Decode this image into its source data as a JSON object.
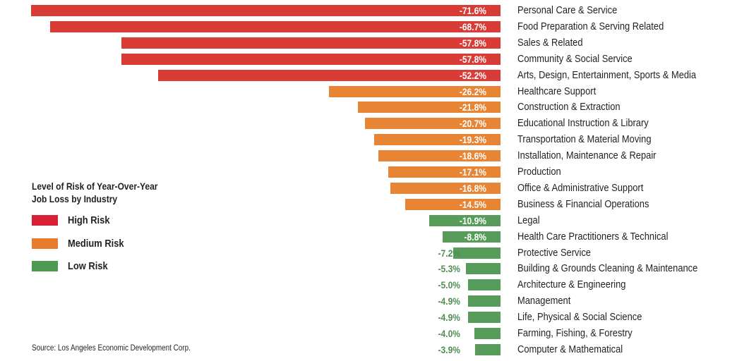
{
  "chart_data": {
    "type": "bar",
    "orientation": "horizontal",
    "title": "Level of Risk of Year-Over-Year Job Loss by Industry",
    "xlabel": "",
    "ylabel": "",
    "xlim": [
      -71.6,
      0
    ],
    "grid": false,
    "legend_placement": "left",
    "categories": [
      "Personal Care & Service",
      "Food Preparation & Serving Related",
      "Sales & Related",
      "Community & Social Service",
      "Arts, Design, Entertainment, Sports & Media",
      "Healthcare Support",
      "Construction & Extraction",
      "Educational Instruction & Library",
      "Transportation & Material Moving",
      "Installation, Maintenance & Repair",
      "Production",
      "Office & Administrative Support",
      "Business & Financial Operations",
      "Legal",
      "Health Care Practitioners & Technical",
      "Protective Service",
      "Building & Grounds Cleaning & Maintenance",
      "Architecture & Engineering",
      "Management",
      "Life, Physical & Social Science",
      "Farming, Fishing, & Forestry",
      "Computer & Mathematical"
    ],
    "values": [
      -71.6,
      -68.7,
      -57.8,
      -57.8,
      -52.2,
      -26.2,
      -21.8,
      -20.7,
      -19.3,
      -18.6,
      -17.1,
      -16.8,
      -14.5,
      -10.9,
      -8.8,
      -7.2,
      -5.3,
      -5.0,
      -4.9,
      -4.9,
      -4.0,
      -3.9
    ],
    "value_labels": [
      "-71.6%",
      "-68.7%",
      "-57.8%",
      "-57.8%",
      "-52.2%",
      "-26.2%",
      "-21.8%",
      "-20.7%",
      "-19.3%",
      "-18.6%",
      "-17.1%",
      "-16.8%",
      "-14.5%",
      "-10.9%",
      "-8.8%",
      "-7.2%",
      "-5.3%",
      "-5.0%",
      "-4.9%",
      "-4.9%",
      "-4.0%",
      "-3.9%"
    ],
    "risk": [
      "high",
      "high",
      "high",
      "high",
      "high",
      "medium",
      "medium",
      "medium",
      "medium",
      "medium",
      "medium",
      "medium",
      "medium",
      "low",
      "low",
      "low",
      "low",
      "low",
      "low",
      "low",
      "low",
      "low"
    ],
    "legend": [
      {
        "key": "high",
        "label": "High Risk"
      },
      {
        "key": "medium",
        "label": "Medium Risk"
      },
      {
        "key": "low",
        "label": "Low Risk"
      }
    ]
  },
  "colors": {
    "high": "#d93c36",
    "medium": "#e88535",
    "low": "#579c5a",
    "legend_high": "#d81f38",
    "legend_medium": "#e87b2c",
    "legend_low": "#4c9a51",
    "text": "#231f20",
    "value_outside": "#4f8f52"
  },
  "legend": {
    "title_line1": "Level of Risk of Year-Over-Year",
    "title_line2": "Job Loss by Industry",
    "items": [
      "High Risk",
      "Medium Risk",
      "Low Risk"
    ]
  },
  "source": "Source: Los Angeles Economic Development Corp."
}
